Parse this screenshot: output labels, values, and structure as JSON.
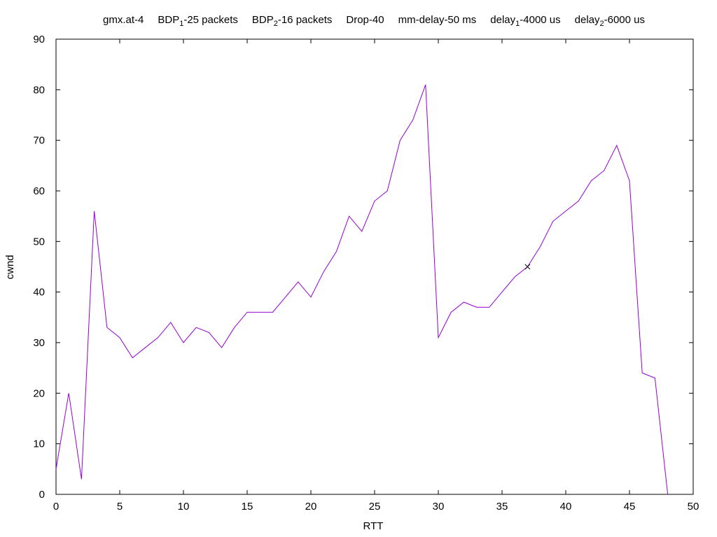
{
  "chart_data": {
    "type": "line",
    "title_parts": [
      {
        "text": "gmx.at-4",
        "sub": ""
      },
      {
        "text": "BDP",
        "sub": "1",
        "after": "-25 packets"
      },
      {
        "text": "BDP",
        "sub": "2",
        "after": "-16 packets"
      },
      {
        "text": "Drop-40",
        "sub": ""
      },
      {
        "text": "mm-delay-50 ms",
        "sub": ""
      },
      {
        "text": "delay",
        "sub": "1",
        "after": "-4000 us"
      },
      {
        "text": "delay",
        "sub": "2",
        "after": "-6000 us"
      }
    ],
    "xlabel": "RTT",
    "ylabel": "cwnd",
    "xlim": [
      0,
      50
    ],
    "ylim": [
      0,
      90
    ],
    "xticks": [
      0,
      5,
      10,
      15,
      20,
      25,
      30,
      35,
      40,
      45,
      50
    ],
    "yticks": [
      0,
      10,
      20,
      30,
      40,
      50,
      60,
      70,
      80,
      90
    ],
    "grid": false,
    "series": [
      {
        "color": "#9400d3",
        "x": [
          0,
          1,
          2,
          3,
          4,
          5,
          6,
          7,
          8,
          9,
          10,
          11,
          12,
          13,
          14,
          15,
          16,
          17,
          18,
          19,
          20,
          21,
          22,
          23,
          24,
          25,
          26,
          27,
          28,
          29,
          30,
          31,
          32,
          33,
          34,
          35,
          36,
          37,
          38,
          39,
          40,
          41,
          42,
          43,
          44,
          45,
          46,
          47,
          48
        ],
        "y": [
          5,
          20,
          3,
          56,
          33,
          31,
          27,
          29,
          31,
          34,
          30,
          33,
          32,
          29,
          33,
          36,
          36,
          36,
          39,
          42,
          39,
          44,
          48,
          55,
          52,
          58,
          60,
          70,
          74,
          81,
          31,
          36,
          38,
          37,
          37,
          40,
          43,
          45,
          49,
          54,
          56,
          58,
          62,
          64,
          69,
          62,
          24,
          23,
          0
        ]
      }
    ],
    "markers": [
      {
        "x": 37,
        "y": 45,
        "symbol": "x",
        "color": "#000000"
      }
    ]
  }
}
